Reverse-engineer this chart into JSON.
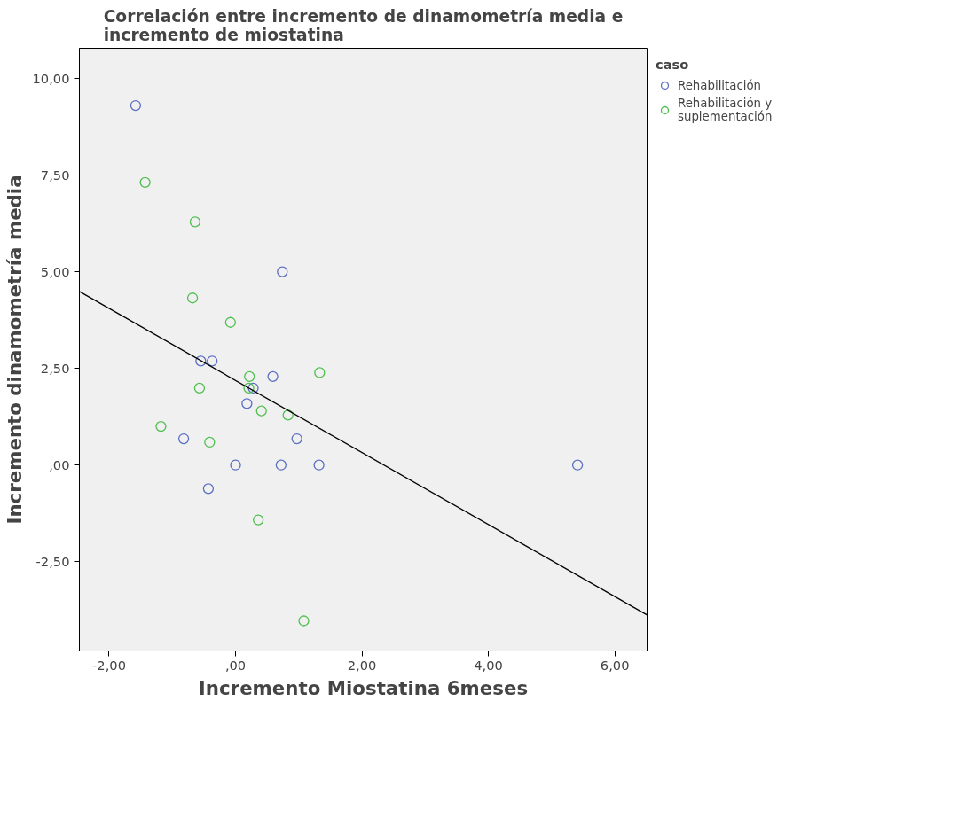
{
  "chart_data": {
    "type": "scatter",
    "title": "Correlación entre incremento de dinamometría media e incremento de miostatina",
    "xlabel": "Incremento Miostatina 6meses",
    "ylabel": "Incremento dinamometría media",
    "legend_title": "caso",
    "legend": "top right",
    "marker": "circle",
    "grid": false,
    "xlim": [
      -2.47,
      6.51
    ],
    "ylim": [
      -4.81,
      10.78
    ],
    "xticks": [
      {
        "value": -2,
        "label": "-2,00"
      },
      {
        "value": 0,
        "label": ",00"
      },
      {
        "value": 2,
        "label": "2,00"
      },
      {
        "value": 4,
        "label": "4,00"
      },
      {
        "value": 6,
        "label": "6,00"
      }
    ],
    "yticks": [
      {
        "value": -2.5,
        "label": "-2,50"
      },
      {
        "value": 0,
        "label": ",00"
      },
      {
        "value": 2.5,
        "label": "2,50"
      },
      {
        "value": 5,
        "label": "5,00"
      },
      {
        "value": 7.5,
        "label": "7,50"
      },
      {
        "value": 10,
        "label": "10,00"
      }
    ],
    "series": [
      {
        "name": "Rehabilitación",
        "color": "#5b6fc4",
        "x": [
          -1.58,
          0.74,
          -0.55,
          -0.37,
          0.59,
          0.18,
          0.28,
          -0.82,
          0.97,
          0.0,
          0.72,
          1.32,
          -0.43,
          5.41
        ],
        "values": [
          9.3,
          5.0,
          2.69,
          2.69,
          2.29,
          1.59,
          1.99,
          0.68,
          0.68,
          0.0,
          0.0,
          0.0,
          -0.61,
          0.0
        ]
      },
      {
        "name": "Rehabilitación y suplementación",
        "color": "#4fbf4f",
        "x": [
          -1.43,
          -0.64,
          -0.68,
          -0.08,
          0.22,
          1.33,
          -0.57,
          0.21,
          0.41,
          0.83,
          -1.18,
          -0.41,
          0.36,
          1.08
        ],
        "values": [
          7.31,
          6.29,
          4.32,
          3.69,
          2.29,
          2.39,
          1.99,
          1.99,
          1.4,
          1.29,
          1.0,
          0.59,
          -1.42,
          -4.03
        ]
      },
      {
        "type": "line",
        "marker": "none",
        "color": "#000000",
        "x": [
          -2.47,
          6.51
        ],
        "values": [
          4.49,
          -3.88
        ]
      }
    ]
  }
}
